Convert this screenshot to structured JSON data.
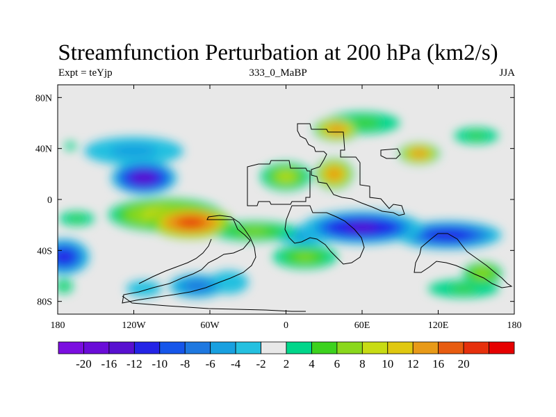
{
  "title": "Streamfunction Perturbation at 200 hPa (km2/s)",
  "left_label": "Expt = teYjp",
  "center_label": "333_0_MaBP",
  "right_label": "JJA",
  "lat_ticks": [
    {
      "lat": 80,
      "label": "80N"
    },
    {
      "lat": 40,
      "label": "40N"
    },
    {
      "lat": 0,
      "label": "0"
    },
    {
      "lat": -40,
      "label": "40S"
    },
    {
      "lat": -80,
      "label": "80S"
    }
  ],
  "lon_ticks": [
    {
      "lon": -180,
      "label": "180"
    },
    {
      "lon": -120,
      "label": "120W"
    },
    {
      "lon": -60,
      "label": "60W"
    },
    {
      "lon": 0,
      "label": "0"
    },
    {
      "lon": 60,
      "label": "60E"
    },
    {
      "lon": 120,
      "label": "120E"
    },
    {
      "lon": 180,
      "label": "180"
    }
  ],
  "colorbar": {
    "colors": [
      "#7b0ee0",
      "#6a0cd8",
      "#5810d0",
      "#2424e6",
      "#1656ea",
      "#1e78e0",
      "#18a0e0",
      "#24c0e0",
      "#e8e8e8",
      "#00d68a",
      "#3cd21e",
      "#8ad81c",
      "#c8dc14",
      "#e0c810",
      "#e89a18",
      "#e85c10",
      "#e6300c",
      "#e60000"
    ],
    "labels": [
      "-20",
      "-16",
      "-12",
      "-10",
      "-8",
      "-6",
      "-4",
      "-2",
      "2",
      "4",
      "6",
      "8",
      "10",
      "12",
      "16",
      "20"
    ]
  },
  "chart_data": {
    "type": "heatmap",
    "title": "Streamfunction Perturbation at 200 hPa (km2/s)",
    "variable": "streamfunction perturbation",
    "level": "200 hPa",
    "units": "km2/s",
    "season": "JJA",
    "experiment": "teYjp",
    "xlim": [
      -180,
      180
    ],
    "ylim": [
      -90,
      90
    ],
    "contour_levels": [
      -20,
      -16,
      -12,
      -10,
      -8,
      -6,
      -4,
      -2,
      2,
      4,
      6,
      8,
      10,
      12,
      16,
      20
    ],
    "features": [
      {
        "lon": -112,
        "lat": 17,
        "value": -14,
        "rlon": 26,
        "rlat": 13
      },
      {
        "lon": -120,
        "lat": 38,
        "value": -5,
        "rlon": 46,
        "rlat": 13
      },
      {
        "lon": -175,
        "lat": -45,
        "value": -12,
        "rlon": 20,
        "rlat": 14
      },
      {
        "lon": 60,
        "lat": -22,
        "value": -13,
        "rlon": 48,
        "rlat": 13
      },
      {
        "lon": 128,
        "lat": -28,
        "value": -12,
        "rlon": 42,
        "rlat": 11
      },
      {
        "lon": 15,
        "lat": -28,
        "value": -6,
        "rlon": 30,
        "rlat": 9
      },
      {
        "lon": -70,
        "lat": -68,
        "value": -7,
        "rlon": 26,
        "rlat": 11
      },
      {
        "lon": -45,
        "lat": -65,
        "value": -4,
        "rlon": 22,
        "rlat": 13
      },
      {
        "lon": -112,
        "lat": -70,
        "value": -4,
        "rlon": 20,
        "rlat": 9
      },
      {
        "lon": -75,
        "lat": -18,
        "value": 20,
        "rlon": 32,
        "rlat": 12
      },
      {
        "lon": -95,
        "lat": -12,
        "value": 10,
        "rlon": 45,
        "rlat": 13
      },
      {
        "lon": -25,
        "lat": -25,
        "value": 6,
        "rlon": 40,
        "rlat": 9
      },
      {
        "lon": 15,
        "lat": -45,
        "value": 6,
        "rlon": 30,
        "rlat": 11
      },
      {
        "lon": 40,
        "lat": 55,
        "value": 14,
        "rlon": 18,
        "rlat": 9
      },
      {
        "lon": 38,
        "lat": 20,
        "value": 14,
        "rlon": 15,
        "rlat": 12
      },
      {
        "lon": 105,
        "lat": 36,
        "value": 14,
        "rlon": 16,
        "rlat": 8
      },
      {
        "lon": 0,
        "lat": 18,
        "value": 8,
        "rlon": 20,
        "rlat": 11
      },
      {
        "lon": 60,
        "lat": 60,
        "value": 5,
        "rlon": 35,
        "rlat": 10
      },
      {
        "lon": 150,
        "lat": 50,
        "value": 4,
        "rlon": 25,
        "rlat": 9
      },
      {
        "lon": 155,
        "lat": -58,
        "value": 7,
        "rlon": 18,
        "rlat": 10
      },
      {
        "lon": 140,
        "lat": -70,
        "value": 4,
        "rlon": 40,
        "rlat": 10
      },
      {
        "lon": -165,
        "lat": -15,
        "value": 4,
        "rlon": 20,
        "rlat": 8
      },
      {
        "lon": -170,
        "lat": 42,
        "value": 3,
        "rlon": 8,
        "rlat": 6
      },
      {
        "lon": -175,
        "lat": -68,
        "value": 4,
        "rlon": 10,
        "rlat": 8
      }
    ]
  }
}
